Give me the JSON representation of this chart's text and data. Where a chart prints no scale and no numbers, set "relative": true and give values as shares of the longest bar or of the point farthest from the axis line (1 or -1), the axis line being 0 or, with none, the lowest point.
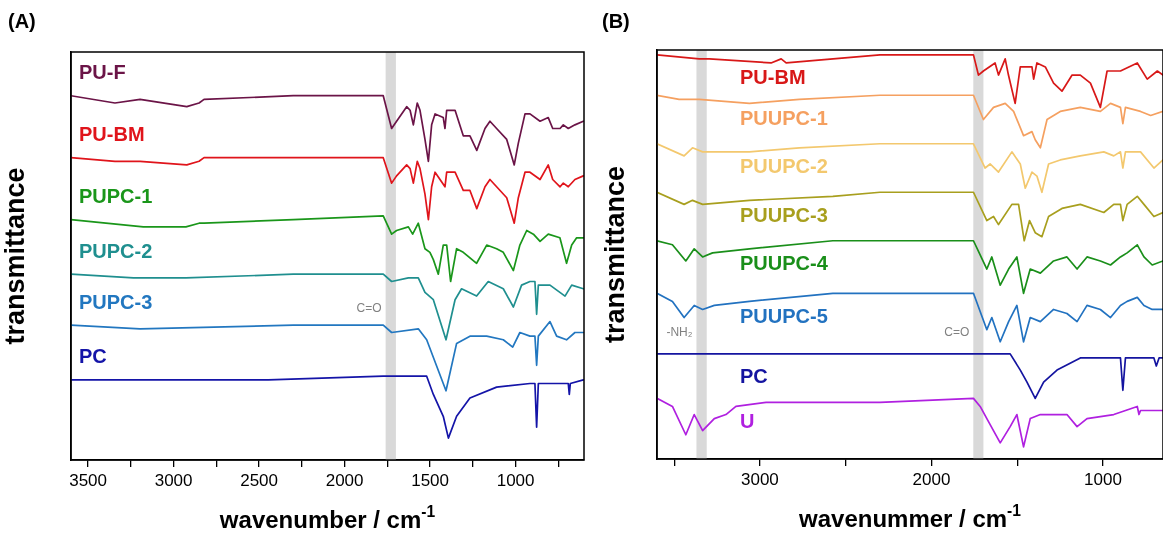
{
  "chart_data": [
    {
      "type": "line",
      "title": "(A)",
      "xlabel": "wavenumber / cm$^{-1}$",
      "ylabel": "transmittance",
      "relative": true,
      "xlim": [
        3600,
        600
      ],
      "xticks": [
        3500,
        {
          "value": 3250,
          "label": null
        },
        3000,
        {
          "value": 2750,
          "label": null
        },
        2500,
        {
          "value": 2250,
          "label": null
        },
        2000,
        {
          "value": 1750,
          "label": null
        },
        1500,
        {
          "value": 1250,
          "label": null
        },
        1000,
        {
          "value": 750,
          "label": null
        }
      ],
      "bands": [
        {
          "axis": "x",
          "from": 1760,
          "to": 1700,
          "label": "C=O",
          "color": "#d9d9d9"
        }
      ],
      "series": [
        {
          "name": "PU-F",
          "color": "#6b1447",
          "x": [
            3600,
            3343,
            3196,
            2923,
            2851,
            2822,
            2300,
            1774,
            1725,
            1696,
            1637,
            1617,
            1598,
            1575,
            1559,
            1530,
            1510,
            1491,
            1471,
            1423,
            1413,
            1403,
            1354,
            1306,
            1267,
            1227,
            1179,
            1150,
            1111,
            1052,
            1008,
            984,
            945,
            916,
            857,
            809,
            783,
            740,
            721,
            692,
            653,
            604
          ],
          "values": [
            1.0,
            0.98,
            0.99,
            0.97,
            0.98,
            0.99,
            1.0,
            1.0,
            0.91,
            0.93,
            0.97,
            0.96,
            0.92,
            0.98,
            0.96,
            0.88,
            0.82,
            0.92,
            0.95,
            0.94,
            0.91,
            0.96,
            0.96,
            0.89,
            0.89,
            0.85,
            0.91,
            0.93,
            0.91,
            0.88,
            0.81,
            0.87,
            0.95,
            0.95,
            0.93,
            0.94,
            0.91,
            0.91,
            0.92,
            0.91,
            0.92,
            0.93
          ]
        },
        {
          "name": "PU-BM",
          "color": "#e0141b",
          "x": [
            3600,
            3343,
            3196,
            2923,
            2851,
            2822,
            2300,
            1774,
            1725,
            1696,
            1637,
            1617,
            1598,
            1575,
            1559,
            1530,
            1510,
            1491,
            1471,
            1413,
            1403,
            1354,
            1306,
            1267,
            1227,
            1179,
            1150,
            1111,
            1052,
            1008,
            984,
            945,
            916,
            857,
            809,
            783,
            740,
            721,
            692,
            653,
            604
          ],
          "values": [
            0.83,
            0.82,
            0.82,
            0.81,
            0.82,
            0.83,
            0.83,
            0.83,
            0.76,
            0.78,
            0.81,
            0.8,
            0.76,
            0.82,
            0.8,
            0.73,
            0.66,
            0.75,
            0.79,
            0.75,
            0.79,
            0.79,
            0.74,
            0.74,
            0.69,
            0.75,
            0.77,
            0.75,
            0.72,
            0.65,
            0.72,
            0.79,
            0.79,
            0.77,
            0.81,
            0.77,
            0.75,
            0.76,
            0.75,
            0.77,
            0.78
          ]
        },
        {
          "name": "PUPC-1",
          "color": "#1a961a",
          "x": [
            3600,
            3177,
            2928,
            2851,
            2822,
            2300,
            1774,
            1725,
            1696,
            1627,
            1602,
            1569,
            1530,
            1501,
            1481,
            1452,
            1423,
            1403,
            1380,
            1345,
            1306,
            1228,
            1169,
            1111,
            1072,
            1013,
            975,
            935,
            896,
            857,
            809,
            741,
            702,
            672,
            643,
            604
          ],
          "values": [
            0.66,
            0.64,
            0.64,
            0.65,
            0.65,
            0.66,
            0.67,
            0.62,
            0.63,
            0.64,
            0.62,
            0.65,
            0.58,
            0.57,
            0.55,
            0.51,
            0.59,
            0.59,
            0.49,
            0.58,
            0.57,
            0.54,
            0.59,
            0.58,
            0.57,
            0.52,
            0.59,
            0.63,
            0.62,
            0.6,
            0.62,
            0.61,
            0.54,
            0.59,
            0.61,
            0.61
          ]
        },
        {
          "name": "PUPC-2",
          "color": "#1f8f8f",
          "x": [
            3600,
            3235,
            2928,
            2300,
            1774,
            1725,
            1627,
            1569,
            1530,
            1481,
            1407,
            1354,
            1316,
            1228,
            1160,
            1072,
            1013,
            965,
            916,
            887,
            877,
            867,
            799,
            741,
            711,
            672,
            604
          ],
          "values": [
            0.51,
            0.5,
            0.5,
            0.51,
            0.51,
            0.49,
            0.5,
            0.5,
            0.46,
            0.44,
            0.33,
            0.44,
            0.47,
            0.45,
            0.49,
            0.47,
            0.42,
            0.48,
            0.49,
            0.49,
            0.4,
            0.48,
            0.48,
            0.46,
            0.45,
            0.48,
            0.47
          ]
        },
        {
          "name": "PUPC-3",
          "color": "#2277c0",
          "x": [
            3600,
            3196,
            2300,
            1774,
            1725,
            1569,
            1520,
            1407,
            1345,
            1267,
            1169,
            1072,
            1017,
            975,
            916,
            887,
            877,
            867,
            799,
            760,
            702,
            653,
            604
          ],
          "values": [
            0.37,
            0.36,
            0.37,
            0.37,
            0.35,
            0.36,
            0.33,
            0.19,
            0.32,
            0.34,
            0.34,
            0.33,
            0.31,
            0.35,
            0.34,
            0.34,
            0.26,
            0.34,
            0.38,
            0.34,
            0.33,
            0.35,
            0.35
          ]
        },
        {
          "name": "PC",
          "color": "#1414a8",
          "x": [
            3600,
            3196,
            2446,
            1774,
            1520,
            1481,
            1423,
            1393,
            1345,
            1267,
            1111,
            916,
            887,
            877,
            867,
            721,
            692,
            686,
            680,
            604
          ],
          "values": [
            0.22,
            0.22,
            0.22,
            0.23,
            0.23,
            0.18,
            0.12,
            0.06,
            0.12,
            0.17,
            0.2,
            0.21,
            0.21,
            0.09,
            0.21,
            0.21,
            0.21,
            0.18,
            0.21,
            0.22
          ]
        }
      ]
    },
    {
      "type": "line",
      "title": "(B)",
      "xlabel": "wavenummer / cm$^{-1}$",
      "ylabel": "transmittance",
      "relative": true,
      "xlim": [
        3600,
        650
      ],
      "xticks": [
        {
          "value": 3500,
          "label": null
        },
        3000,
        {
          "value": 2500,
          "label": null
        },
        2000,
        {
          "value": 1500,
          "label": null
        },
        1000
      ],
      "bands": [
        {
          "axis": "x",
          "from": 3370,
          "to": 3310,
          "label": "-NH₂",
          "color": "#d9d9d9"
        },
        {
          "axis": "x",
          "from": 1756,
          "to": 1697,
          "label": "C=O",
          "color": "#d9d9d9"
        }
      ],
      "series": [
        {
          "name": "PU-BM",
          "color": "#d81818",
          "x": [
            3600,
            3354,
            3295,
            2935,
            2876,
            2847,
            2300,
            1755,
            1726,
            1697,
            1629,
            1609,
            1570,
            1551,
            1512,
            1482,
            1414,
            1404,
            1385,
            1336,
            1288,
            1239,
            1180,
            1132,
            1073,
            1015,
            976,
            898,
            800,
            742,
            683,
            650
          ],
          "values": [
            1.0,
            0.99,
            0.99,
            0.98,
            0.99,
            0.98,
            1.0,
            1.0,
            0.95,
            0.96,
            0.98,
            0.95,
            0.99,
            0.95,
            0.88,
            0.97,
            0.97,
            0.94,
            0.98,
            0.97,
            0.93,
            0.91,
            0.95,
            0.95,
            0.93,
            0.87,
            0.96,
            0.96,
            0.98,
            0.94,
            0.96,
            0.95
          ]
        },
        {
          "name": "PUUPC-1",
          "color": "#f5a060",
          "x": [
            3600,
            3471,
            3432,
            3354,
            3061,
            2770,
            2300,
            1755,
            1697,
            1638,
            1570,
            1521,
            1463,
            1414,
            1395,
            1365,
            1326,
            1249,
            1132,
            1015,
            956,
            898,
            884,
            869,
            781,
            722,
            650
          ],
          "values": [
            0.9,
            0.89,
            0.89,
            0.89,
            0.88,
            0.89,
            0.9,
            0.9,
            0.84,
            0.87,
            0.88,
            0.86,
            0.8,
            0.81,
            0.79,
            0.77,
            0.84,
            0.86,
            0.87,
            0.86,
            0.88,
            0.87,
            0.83,
            0.87,
            0.86,
            0.85,
            0.86
          ]
        },
        {
          "name": "PUUPC-2",
          "color": "#f3c86e",
          "x": [
            3600,
            3442,
            3393,
            3334,
            3061,
            2770,
            2300,
            1755,
            1687,
            1658,
            1609,
            1531,
            1482,
            1453,
            1414,
            1385,
            1356,
            1317,
            1249,
            1132,
            995,
            937,
            898,
            884,
            869,
            781,
            703,
            650
          ],
          "values": [
            0.78,
            0.75,
            0.77,
            0.76,
            0.76,
            0.77,
            0.78,
            0.78,
            0.72,
            0.73,
            0.71,
            0.76,
            0.73,
            0.67,
            0.71,
            0.7,
            0.66,
            0.73,
            0.74,
            0.75,
            0.76,
            0.75,
            0.76,
            0.72,
            0.76,
            0.76,
            0.72,
            0.74
          ]
        },
        {
          "name": "PUUPC-3",
          "color": "#a89f1e",
          "x": [
            3600,
            3442,
            3393,
            3334,
            3061,
            2575,
            2300,
            1755,
            1677,
            1638,
            1609,
            1531,
            1492,
            1459,
            1428,
            1395,
            1356,
            1317,
            1239,
            1132,
            995,
            937,
            898,
            884,
            859,
            800,
            761,
            703,
            650
          ],
          "values": [
            0.66,
            0.63,
            0.64,
            0.63,
            0.64,
            0.65,
            0.66,
            0.66,
            0.59,
            0.6,
            0.58,
            0.63,
            0.63,
            0.54,
            0.59,
            0.56,
            0.55,
            0.6,
            0.62,
            0.63,
            0.61,
            0.63,
            0.63,
            0.59,
            0.63,
            0.65,
            0.63,
            0.6,
            0.61
          ]
        },
        {
          "name": "PUUPC-4",
          "color": "#1a8f1a",
          "x": [
            3600,
            3510,
            3432,
            3383,
            3334,
            3276,
            3061,
            2575,
            2300,
            1755,
            1677,
            1648,
            1599,
            1550,
            1502,
            1463,
            1424,
            1365,
            1288,
            1210,
            1151,
            1093,
            1015,
            956,
            898,
            859,
            800,
            761,
            713,
            650
          ],
          "values": [
            0.54,
            0.53,
            0.49,
            0.52,
            0.5,
            0.51,
            0.52,
            0.54,
            0.54,
            0.54,
            0.47,
            0.5,
            0.43,
            0.47,
            0.5,
            0.41,
            0.47,
            0.46,
            0.49,
            0.5,
            0.47,
            0.5,
            0.49,
            0.48,
            0.5,
            0.51,
            0.53,
            0.5,
            0.48,
            0.49
          ]
        },
        {
          "name": "PUUPC-5",
          "color": "#2272c0",
          "x": [
            3600,
            3510,
            3442,
            3383,
            3334,
            3266,
            3061,
            2575,
            2300,
            1755,
            1677,
            1648,
            1599,
            1550,
            1502,
            1463,
            1424,
            1365,
            1288,
            1210,
            1151,
            1093,
            1015,
            956,
            898,
            859,
            800,
            761,
            713,
            650
          ],
          "values": [
            0.41,
            0.39,
            0.35,
            0.38,
            0.37,
            0.38,
            0.39,
            0.41,
            0.41,
            0.41,
            0.32,
            0.35,
            0.29,
            0.34,
            0.38,
            0.29,
            0.35,
            0.34,
            0.37,
            0.36,
            0.34,
            0.38,
            0.37,
            0.35,
            0.38,
            0.39,
            0.4,
            0.38,
            0.37,
            0.37
          ]
        },
        {
          "name": "PC",
          "color": "#1414a0",
          "x": [
            3600,
            3000,
            2300,
            1755,
            1541,
            1482,
            1443,
            1395,
            1346,
            1268,
            1132,
            898,
            884,
            869,
            703,
            689,
            673,
            650
          ],
          "values": [
            0.26,
            0.26,
            0.26,
            0.26,
            0.26,
            0.22,
            0.19,
            0.15,
            0.19,
            0.22,
            0.25,
            0.25,
            0.17,
            0.25,
            0.25,
            0.23,
            0.25,
            0.25
          ]
        },
        {
          "name": "U",
          "color": "#b020e0",
          "x": [
            3600,
            3510,
            3432,
            3383,
            3334,
            3266,
            3198,
            3140,
            2964,
            2575,
            2300,
            1755,
            1716,
            1677,
            1599,
            1541,
            1502,
            1463,
            1424,
            1365,
            1210,
            1151,
            1093,
            937,
            800,
            790,
            781,
            650
          ],
          "values": [
            0.15,
            0.13,
            0.06,
            0.11,
            0.07,
            0.1,
            0.11,
            0.13,
            0.14,
            0.14,
            0.14,
            0.15,
            0.13,
            0.1,
            0.04,
            0.08,
            0.11,
            0.03,
            0.1,
            0.11,
            0.11,
            0.08,
            0.1,
            0.11,
            0.13,
            0.11,
            0.12,
            0.12
          ]
        }
      ]
    }
  ]
}
